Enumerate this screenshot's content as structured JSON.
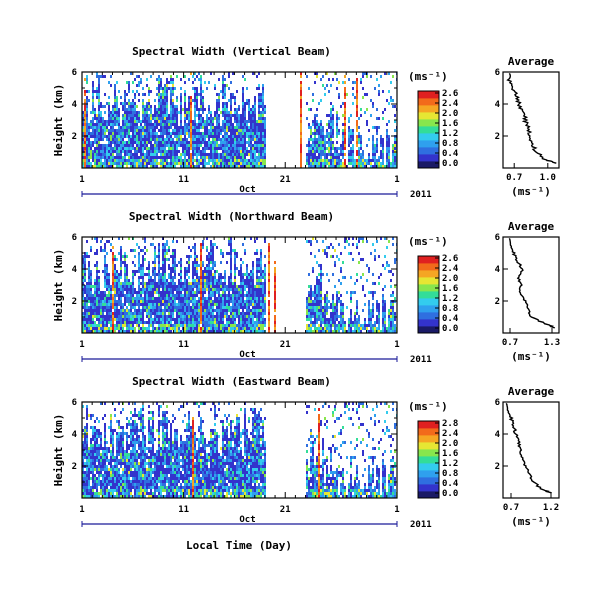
{
  "figure": {
    "xlabel": "Local Time (Day)",
    "month_label": "Oct",
    "year_label": "2011",
    "colorbar_unit": "(ms⁻¹)",
    "average_title": "Average",
    "average_xlabel": "(ms⁻¹)"
  },
  "chart_data": [
    {
      "type": "heatmap",
      "title": "Spectral Width (Vertical Beam)",
      "ylabel": "Height (km)",
      "x_ticks": [
        "1",
        "11",
        "21",
        "1"
      ],
      "y_ticks": [
        "6",
        "4",
        "2"
      ],
      "colorbar_ticks": [
        "2.6",
        "2.4",
        "2.0",
        "1.6",
        "1.2",
        "0.8",
        "0.4",
        "0.0"
      ],
      "xlim_days": [
        1,
        32
      ],
      "ylim": [
        0,
        6
      ],
      "zlim": [
        0,
        2.8
      ],
      "data_gaps_days": [
        [
          19,
          23
        ]
      ],
      "average": {
        "title": "Average",
        "xlabel": "(ms⁻¹)",
        "x_ticks": [
          "0.7",
          "1.0"
        ],
        "xlim": [
          0.6,
          1.1
        ],
        "y_ticks": [
          "6",
          "4",
          "2"
        ],
        "height_km": [
          0.3,
          0.5,
          1.0,
          1.5,
          2.0,
          2.5,
          3.0,
          3.5,
          4.0,
          4.5,
          5.0,
          5.5,
          6.0
        ],
        "spectral_width": [
          1.08,
          0.98,
          0.9,
          0.86,
          0.84,
          0.82,
          0.8,
          0.77,
          0.74,
          0.72,
          0.69,
          0.66,
          0.64
        ]
      }
    },
    {
      "type": "heatmap",
      "title": "Spectral Width (Northward Beam)",
      "ylabel": "Height (km)",
      "x_ticks": [
        "1",
        "11",
        "21",
        "1"
      ],
      "y_ticks": [
        "6",
        "4",
        "2"
      ],
      "colorbar_ticks": [
        "2.6",
        "2.4",
        "2.0",
        "1.6",
        "1.2",
        "0.8",
        "0.4",
        "0.0"
      ],
      "xlim_days": [
        1,
        32
      ],
      "ylim": [
        0,
        6
      ],
      "zlim": [
        0,
        2.8
      ],
      "data_gaps_days": [
        [
          19,
          23
        ]
      ],
      "average": {
        "title": "Average",
        "xlabel": "(ms⁻¹)",
        "x_ticks": [
          "0.7",
          "1.3"
        ],
        "xlim": [
          0.6,
          1.4
        ],
        "y_ticks": [
          "6",
          "4",
          "2"
        ],
        "height_km": [
          0.3,
          0.5,
          1.0,
          1.5,
          2.0,
          2.5,
          3.0,
          3.5,
          4.0,
          4.5,
          5.0,
          5.5,
          6.0
        ],
        "spectral_width": [
          1.35,
          1.25,
          1.0,
          0.95,
          0.92,
          0.85,
          0.86,
          0.82,
          0.88,
          0.8,
          0.75,
          0.72,
          0.7
        ]
      }
    },
    {
      "type": "heatmap",
      "title": "Spectral Width (Eastward Beam)",
      "ylabel": "Height (km)",
      "x_ticks": [
        "1",
        "11",
        "21",
        "1"
      ],
      "y_ticks": [
        "6",
        "4",
        "2"
      ],
      "colorbar_ticks": [
        "2.8",
        "2.4",
        "2.0",
        "1.6",
        "1.2",
        "0.8",
        "0.4",
        "0.0"
      ],
      "xlim_days": [
        1,
        32
      ],
      "ylim": [
        0,
        6
      ],
      "zlim": [
        0,
        2.8
      ],
      "data_gaps_days": [
        [
          19,
          23
        ]
      ],
      "average": {
        "title": "Average",
        "xlabel": "(ms⁻¹)",
        "x_ticks": [
          "0.7",
          "1.2"
        ],
        "xlim": [
          0.6,
          1.3
        ],
        "y_ticks": [
          "6",
          "4",
          "2"
        ],
        "height_km": [
          0.3,
          0.5,
          1.0,
          1.5,
          2.0,
          2.5,
          3.0,
          3.5,
          4.0,
          4.5,
          5.0,
          5.5,
          6.0
        ],
        "spectral_width": [
          1.22,
          1.1,
          0.98,
          0.92,
          0.88,
          0.85,
          0.82,
          0.8,
          0.76,
          0.73,
          0.7,
          0.67,
          0.65
        ]
      }
    }
  ],
  "colors": {
    "colormap": [
      "#1a1a66",
      "#3333cc",
      "#2f6fe0",
      "#2fa0ee",
      "#33ccee",
      "#33dd99",
      "#88e64d",
      "#e6e633",
      "#f5a623",
      "#f26a1b",
      "#e02020"
    ],
    "no_data": "#ffffff",
    "axis": "#000000",
    "time_bar": "#1a1a99"
  }
}
